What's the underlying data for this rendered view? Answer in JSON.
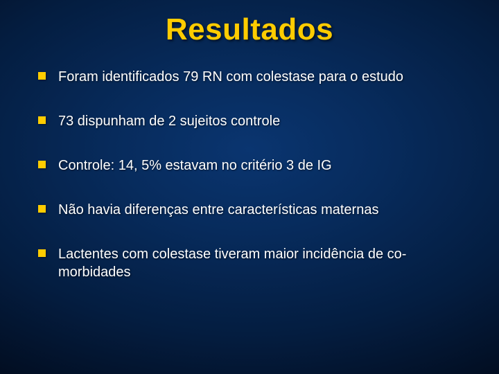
{
  "slide": {
    "title": "Resultados",
    "title_color": "#ffcc00",
    "title_fontsize": 44,
    "background_gradient": {
      "type": "radial",
      "center_color": "#0a3570",
      "mid_color": "#041d40",
      "edge_color": "#000510"
    },
    "bullet_marker_color": "#ffcc00",
    "bullet_marker_size": 11,
    "bullet_text_color": "#ffffff",
    "bullet_fontsize": 20,
    "bullets": [
      "Foram identificados 79 RN com colestase para o estudo",
      "73 dispunham de 2 sujeitos controle",
      "Controle: 14, 5% estavam no critério 3 de IG",
      "Não havia diferenças entre características maternas",
      "Lactentes com colestase tiveram maior incidência de co-morbidades"
    ]
  }
}
